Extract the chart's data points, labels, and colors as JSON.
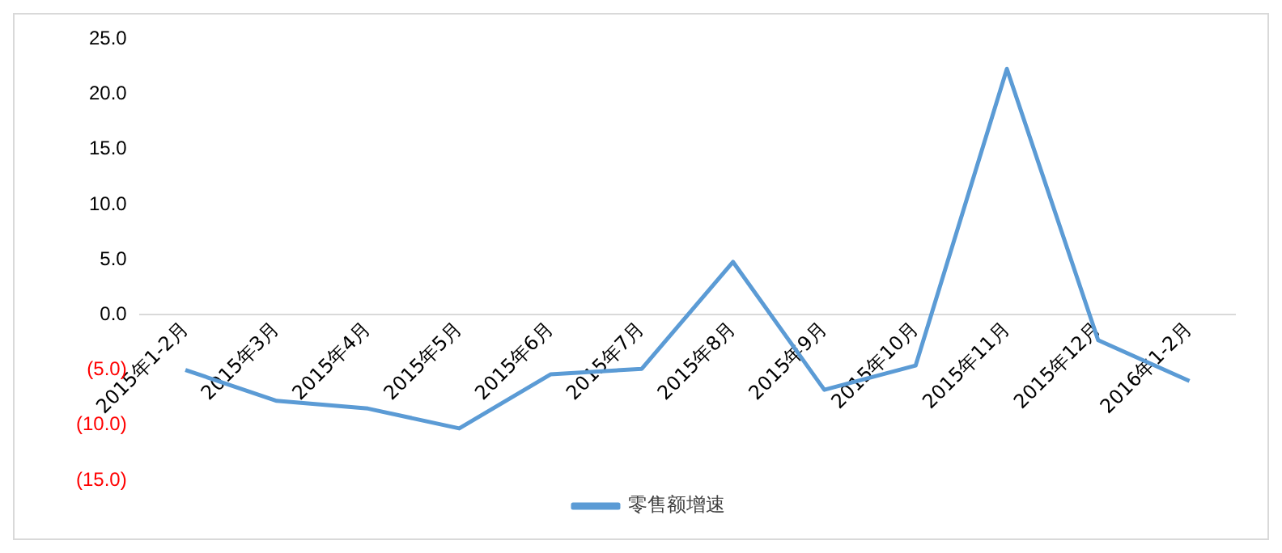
{
  "chart_data": {
    "type": "line",
    "categories": [
      "2015年1-2月",
      "2015年3月",
      "2015年4月",
      "2015年5月",
      "2015年6月",
      "2015年7月",
      "2015年8月",
      "2015年9月",
      "2015年10月",
      "2015年11月",
      "2015年12月",
      "2016年1-2月"
    ],
    "series": [
      {
        "name": "零售额增速",
        "color": "#5b9bd5",
        "values": [
          -5.0,
          -7.8,
          -8.5,
          -10.3,
          -5.4,
          -4.9,
          4.8,
          -6.8,
          -4.6,
          22.3,
          -2.3,
          -6.0
        ]
      }
    ],
    "ylim": [
      -15,
      25
    ],
    "yticks": [
      {
        "value": -15,
        "label": "(15.0)"
      },
      {
        "value": -10,
        "label": "(10.0)"
      },
      {
        "value": -5,
        "label": "(5.0)"
      },
      {
        "value": 0,
        "label": "0.0"
      },
      {
        "value": 5,
        "label": "5.0"
      },
      {
        "value": 10,
        "label": "10.0"
      },
      {
        "value": 15,
        "label": "15.0"
      },
      {
        "value": 20,
        "label": "20.0"
      },
      {
        "value": 25,
        "label": "25.0"
      }
    ],
    "grid": false,
    "legend": "bottom",
    "marker": "none",
    "line_style": "solid"
  }
}
